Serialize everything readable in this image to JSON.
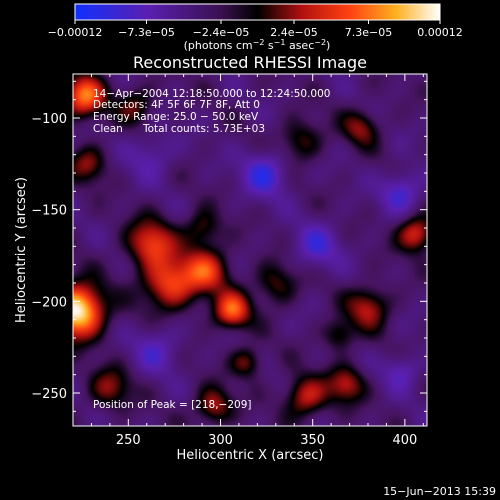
{
  "chart_data": {
    "type": "heatmap",
    "title": "Reconstructed RHESSI Image",
    "xlabel": "Heliocentric X (arcsec)",
    "ylabel": "Heliocentric Y (arcsec)",
    "xlim": [
      220,
      412
    ],
    "ylim": [
      -268,
      -76
    ],
    "xticks": [
      {
        "value": 250,
        "label": "250"
      },
      {
        "value": 300,
        "label": "300"
      },
      {
        "value": 350,
        "label": "350"
      },
      {
        "value": 400,
        "label": "400"
      }
    ],
    "yticks": [
      {
        "value": -100,
        "label": "−100"
      },
      {
        "value": -150,
        "label": "−150"
      },
      {
        "value": -200,
        "label": "−200"
      },
      {
        "value": -250,
        "label": "−250"
      }
    ],
    "colorbar": {
      "range": [
        -0.00012,
        0.00012
      ],
      "ticks": [
        {
          "value": -0.00012,
          "label": "−0.00012"
        },
        {
          "value": -7.3e-05,
          "label": "−7.3e−05"
        },
        {
          "value": -2.4e-05,
          "label": "−2.4e−05"
        },
        {
          "value": 2.4e-05,
          "label": "2.4e−05"
        },
        {
          "value": 7.3e-05,
          "label": "7.3e−05"
        },
        {
          "value": 0.00012,
          "label": "0.00012"
        }
      ],
      "unit_main": "(photons cm",
      "unit_sup1": "−2",
      "unit_mid": " s",
      "unit_sup2": "−1",
      "unit_mid2": " asec",
      "unit_sup3": "−2",
      "unit_end": ")"
    },
    "annotations": {
      "time_range": "14−Apr−2004 12:18:50.000 to 12:24:50.000",
      "detectors": "Detectors: 4F 5F 6F 7F 8F, Att 0",
      "energy": "Energy Range: 25.0 − 50.0 keV",
      "clean": "Clean",
      "counts": "Total counts: 5.73E+03",
      "peak": "Position of Peak = [218,−209]"
    },
    "sources": [
      {
        "x": 222,
        "y": -205,
        "amp": 1.3,
        "s": 10
      },
      {
        "x": 226,
        "y": -88,
        "amp": 0.85,
        "s": 8
      },
      {
        "x": 228,
        "y": -125,
        "amp": 0.45,
        "s": 7
      },
      {
        "x": 262,
        "y": -168,
        "amp": 0.7,
        "s": 9
      },
      {
        "x": 272,
        "y": -190,
        "amp": 0.75,
        "s": 10
      },
      {
        "x": 292,
        "y": -183,
        "amp": 0.65,
        "s": 9
      },
      {
        "x": 306,
        "y": -205,
        "amp": 0.8,
        "s": 7
      },
      {
        "x": 290,
        "y": -160,
        "amp": 0.4,
        "s": 7
      },
      {
        "x": 330,
        "y": -190,
        "amp": 0.4,
        "s": 8
      },
      {
        "x": 343,
        "y": -112,
        "amp": 0.4,
        "s": 8
      },
      {
        "x": 376,
        "y": -105,
        "amp": 0.45,
        "s": 7
      },
      {
        "x": 406,
        "y": -163,
        "amp": 0.7,
        "s": 7
      },
      {
        "x": 380,
        "y": -203,
        "amp": 0.55,
        "s": 8
      },
      {
        "x": 364,
        "y": -218,
        "amp": 0.4,
        "s": 6
      },
      {
        "x": 346,
        "y": -252,
        "amp": 0.6,
        "s": 8
      },
      {
        "x": 368,
        "y": -245,
        "amp": 0.55,
        "s": 7
      },
      {
        "x": 296,
        "y": -257,
        "amp": 0.55,
        "s": 7
      },
      {
        "x": 314,
        "y": -233,
        "amp": 0.45,
        "s": 6
      },
      {
        "x": 240,
        "y": -247,
        "amp": 0.45,
        "s": 8
      },
      {
        "x": 254,
        "y": -93,
        "amp": 0.4,
        "s": 7
      },
      {
        "x": 324,
        "y": -130,
        "amp": -0.5,
        "s": 9
      },
      {
        "x": 352,
        "y": -170,
        "amp": -0.4,
        "s": 9
      },
      {
        "x": 398,
        "y": -140,
        "amp": -0.45,
        "s": 8
      },
      {
        "x": 265,
        "y": -226,
        "amp": -0.35,
        "s": 9
      },
      {
        "x": 262,
        "y": -120,
        "amp": -0.3,
        "s": 9
      },
      {
        "x": 398,
        "y": -238,
        "amp": -0.35,
        "s": 7
      }
    ]
  },
  "footer": {
    "timestamp": "15−Jun−2013 15:39"
  }
}
